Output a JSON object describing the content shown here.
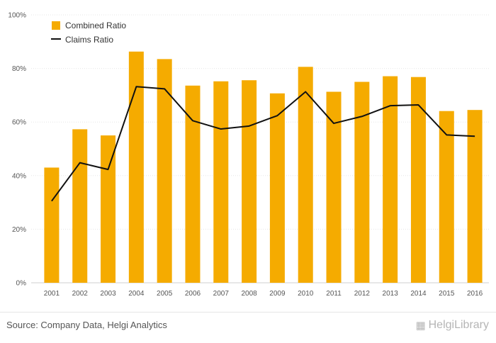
{
  "chart_data": {
    "type": "bar",
    "categories": [
      "2001",
      "2002",
      "2003",
      "2004",
      "2005",
      "2006",
      "2007",
      "2008",
      "2009",
      "2010",
      "2011",
      "2012",
      "2013",
      "2014",
      "2015",
      "2016"
    ],
    "series": [
      {
        "name": "Combined Ratio",
        "type": "bar",
        "color": "#f5ab00",
        "values": [
          43.0,
          57.3,
          55.0,
          86.3,
          83.5,
          73.6,
          75.2,
          75.6,
          70.7,
          80.6,
          71.3,
          75.0,
          77.1,
          76.8,
          64.1,
          64.5
        ]
      },
      {
        "name": "Claims Ratio",
        "type": "line",
        "color": "#111111",
        "values": [
          30.5,
          44.8,
          42.3,
          73.2,
          72.4,
          60.5,
          57.4,
          58.5,
          62.4,
          71.3,
          59.5,
          62.1,
          66.1,
          66.4,
          55.2,
          54.7
        ]
      }
    ],
    "ylim": [
      0,
      100
    ],
    "yticks": [
      "0%",
      "20%",
      "40%",
      "60%",
      "80%",
      "100%"
    ],
    "grid": true,
    "legend_position": "top-left"
  },
  "footer": {
    "source": "Source: Company Data, Helgi Analytics",
    "brand": "HelgiLibrary"
  },
  "icons": {
    "brand_icon": "bookshelf-icon"
  }
}
